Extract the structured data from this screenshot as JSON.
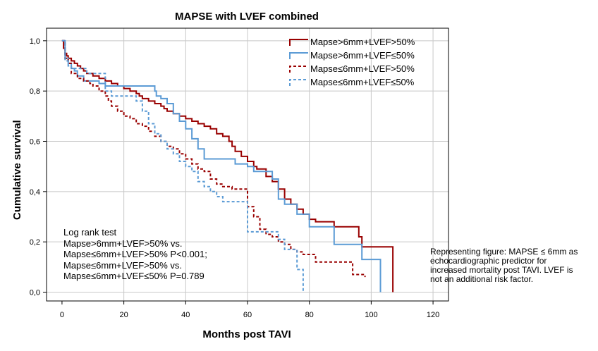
{
  "chart_data": {
    "type": "line",
    "title": "MAPSE with LVEF combined",
    "xlabel": "Months post TAVI",
    "ylabel": "Cumulative survival",
    "xlim": [
      -5,
      125
    ],
    "ylim": [
      -0.035,
      1.05
    ],
    "x_ticks": [
      "0",
      "20",
      "40",
      "60",
      "80",
      "100",
      "120"
    ],
    "y_ticks": [
      "0,0",
      "0,2",
      "0,4",
      "0,6",
      "0,8",
      "1,0"
    ],
    "grid": true,
    "legend_position": "top-right",
    "series": [
      {
        "name": "Mapse>6mm+LVEF>50%",
        "color": "#990000",
        "dash": "solid",
        "points": [
          [
            0,
            1.0
          ],
          [
            0.5,
            0.97
          ],
          [
            1,
            0.95
          ],
          [
            1.5,
            0.94
          ],
          [
            2,
            0.93
          ],
          [
            3,
            0.92
          ],
          [
            4,
            0.91
          ],
          [
            5,
            0.9
          ],
          [
            6,
            0.89
          ],
          [
            7,
            0.88
          ],
          [
            8,
            0.87
          ],
          [
            10,
            0.86
          ],
          [
            12,
            0.85
          ],
          [
            14,
            0.84
          ],
          [
            16,
            0.83
          ],
          [
            18,
            0.82
          ],
          [
            20,
            0.81
          ],
          [
            22,
            0.8
          ],
          [
            24,
            0.79
          ],
          [
            25,
            0.78
          ],
          [
            26,
            0.77
          ],
          [
            28,
            0.76
          ],
          [
            30,
            0.75
          ],
          [
            32,
            0.74
          ],
          [
            33,
            0.73
          ],
          [
            34,
            0.72
          ],
          [
            36,
            0.71
          ],
          [
            38,
            0.7
          ],
          [
            40,
            0.69
          ],
          [
            42,
            0.68
          ],
          [
            44,
            0.67
          ],
          [
            46,
            0.66
          ],
          [
            48,
            0.65
          ],
          [
            50,
            0.63
          ],
          [
            52,
            0.62
          ],
          [
            54,
            0.6
          ],
          [
            55,
            0.58
          ],
          [
            56,
            0.56
          ],
          [
            58,
            0.54
          ],
          [
            60,
            0.52
          ],
          [
            62,
            0.5
          ],
          [
            63,
            0.49
          ],
          [
            66,
            0.46
          ],
          [
            68,
            0.44
          ],
          [
            70,
            0.41
          ],
          [
            72,
            0.37
          ],
          [
            74,
            0.35
          ],
          [
            76,
            0.33
          ],
          [
            78,
            0.31
          ],
          [
            80,
            0.29
          ],
          [
            82,
            0.28
          ],
          [
            88,
            0.26
          ],
          [
            96,
            0.22
          ],
          [
            97,
            0.18
          ],
          [
            107,
            0.0
          ]
        ]
      },
      {
        "name": "Mapse>6mm+LVEF≤50%",
        "color": "#5b9bd5",
        "dash": "solid",
        "points": [
          [
            0,
            1.0
          ],
          [
            1,
            0.93
          ],
          [
            2,
            0.91
          ],
          [
            3,
            0.89
          ],
          [
            4,
            0.88
          ],
          [
            5,
            0.86
          ],
          [
            7,
            0.84
          ],
          [
            12,
            0.83
          ],
          [
            14,
            0.82
          ],
          [
            30,
            0.8
          ],
          [
            30.5,
            0.78
          ],
          [
            32,
            0.77
          ],
          [
            34,
            0.75
          ],
          [
            36,
            0.71
          ],
          [
            38,
            0.68
          ],
          [
            40,
            0.65
          ],
          [
            42,
            0.61
          ],
          [
            44,
            0.57
          ],
          [
            46,
            0.53
          ],
          [
            55,
            0.53
          ],
          [
            56,
            0.51
          ],
          [
            60,
            0.5
          ],
          [
            62,
            0.48
          ],
          [
            68,
            0.45
          ],
          [
            70,
            0.37
          ],
          [
            72,
            0.35
          ],
          [
            76,
            0.31
          ],
          [
            80,
            0.26
          ],
          [
            88,
            0.19
          ],
          [
            97,
            0.13
          ],
          [
            103,
            0.0
          ]
        ]
      },
      {
        "name": "Mapse≤6mm+LVEF>50%",
        "color": "#990000",
        "dash": "dashed",
        "points": [
          [
            0,
            1.0
          ],
          [
            1,
            0.93
          ],
          [
            2,
            0.91
          ],
          [
            3,
            0.87
          ],
          [
            5,
            0.85
          ],
          [
            7,
            0.84
          ],
          [
            9,
            0.83
          ],
          [
            10,
            0.82
          ],
          [
            12,
            0.8
          ],
          [
            14,
            0.78
          ],
          [
            15,
            0.76
          ],
          [
            16,
            0.74
          ],
          [
            18,
            0.72
          ],
          [
            20,
            0.7
          ],
          [
            22,
            0.69
          ],
          [
            24,
            0.67
          ],
          [
            26,
            0.66
          ],
          [
            28,
            0.64
          ],
          [
            30,
            0.62
          ],
          [
            32,
            0.6
          ],
          [
            34,
            0.58
          ],
          [
            36,
            0.57
          ],
          [
            38,
            0.55
          ],
          [
            40,
            0.53
          ],
          [
            42,
            0.51
          ],
          [
            44,
            0.49
          ],
          [
            46,
            0.48
          ],
          [
            48,
            0.45
          ],
          [
            50,
            0.43
          ],
          [
            52,
            0.42
          ],
          [
            55,
            0.41
          ],
          [
            60,
            0.34
          ],
          [
            62,
            0.3
          ],
          [
            64,
            0.25
          ],
          [
            66,
            0.23
          ],
          [
            68,
            0.22
          ],
          [
            70,
            0.2
          ],
          [
            72,
            0.19
          ],
          [
            74,
            0.17
          ],
          [
            76,
            0.16
          ],
          [
            78,
            0.15
          ],
          [
            82,
            0.12
          ],
          [
            88,
            0.12
          ],
          [
            94,
            0.07
          ],
          [
            98,
            0.06
          ]
        ]
      },
      {
        "name": "Mapse≤6mm+LVEF≤50%",
        "color": "#5b9bd5",
        "dash": "dashed",
        "points": [
          [
            0,
            1.0
          ],
          [
            1,
            0.92
          ],
          [
            2,
            0.9
          ],
          [
            3,
            0.89
          ],
          [
            8,
            0.87
          ],
          [
            14,
            0.8
          ],
          [
            16,
            0.78
          ],
          [
            24,
            0.76
          ],
          [
            26,
            0.72
          ],
          [
            28,
            0.67
          ],
          [
            30,
            0.63
          ],
          [
            32,
            0.6
          ],
          [
            34,
            0.57
          ],
          [
            36,
            0.55
          ],
          [
            38,
            0.52
          ],
          [
            40,
            0.5
          ],
          [
            42,
            0.48
          ],
          [
            44,
            0.44
          ],
          [
            46,
            0.42
          ],
          [
            48,
            0.4
          ],
          [
            50,
            0.38
          ],
          [
            52,
            0.36
          ],
          [
            56,
            0.36
          ],
          [
            60,
            0.24
          ],
          [
            62,
            0.24
          ],
          [
            64,
            0.24
          ],
          [
            70,
            0.21
          ],
          [
            72,
            0.17
          ],
          [
            76,
            0.09
          ],
          [
            78,
            0.0
          ]
        ]
      }
    ],
    "annotation_logrank": [
      "Log rank test",
      "Mapse>6mm+LVEF>50% vs.",
      "Mapse≤6mm+LVEF>50% P<0.001;",
      "Mapse≤6mm+LVEF>50% vs.",
      "Mapse≤6mm+LVEF≤50% P=0.789"
    ],
    "annotation_note": [
      "Representing figure: MAPSE ≤ 6mm as",
      "echocardiographic predictor for",
      "increased mortality post TAVI. LVEF is",
      "not an additional risk factor."
    ]
  }
}
